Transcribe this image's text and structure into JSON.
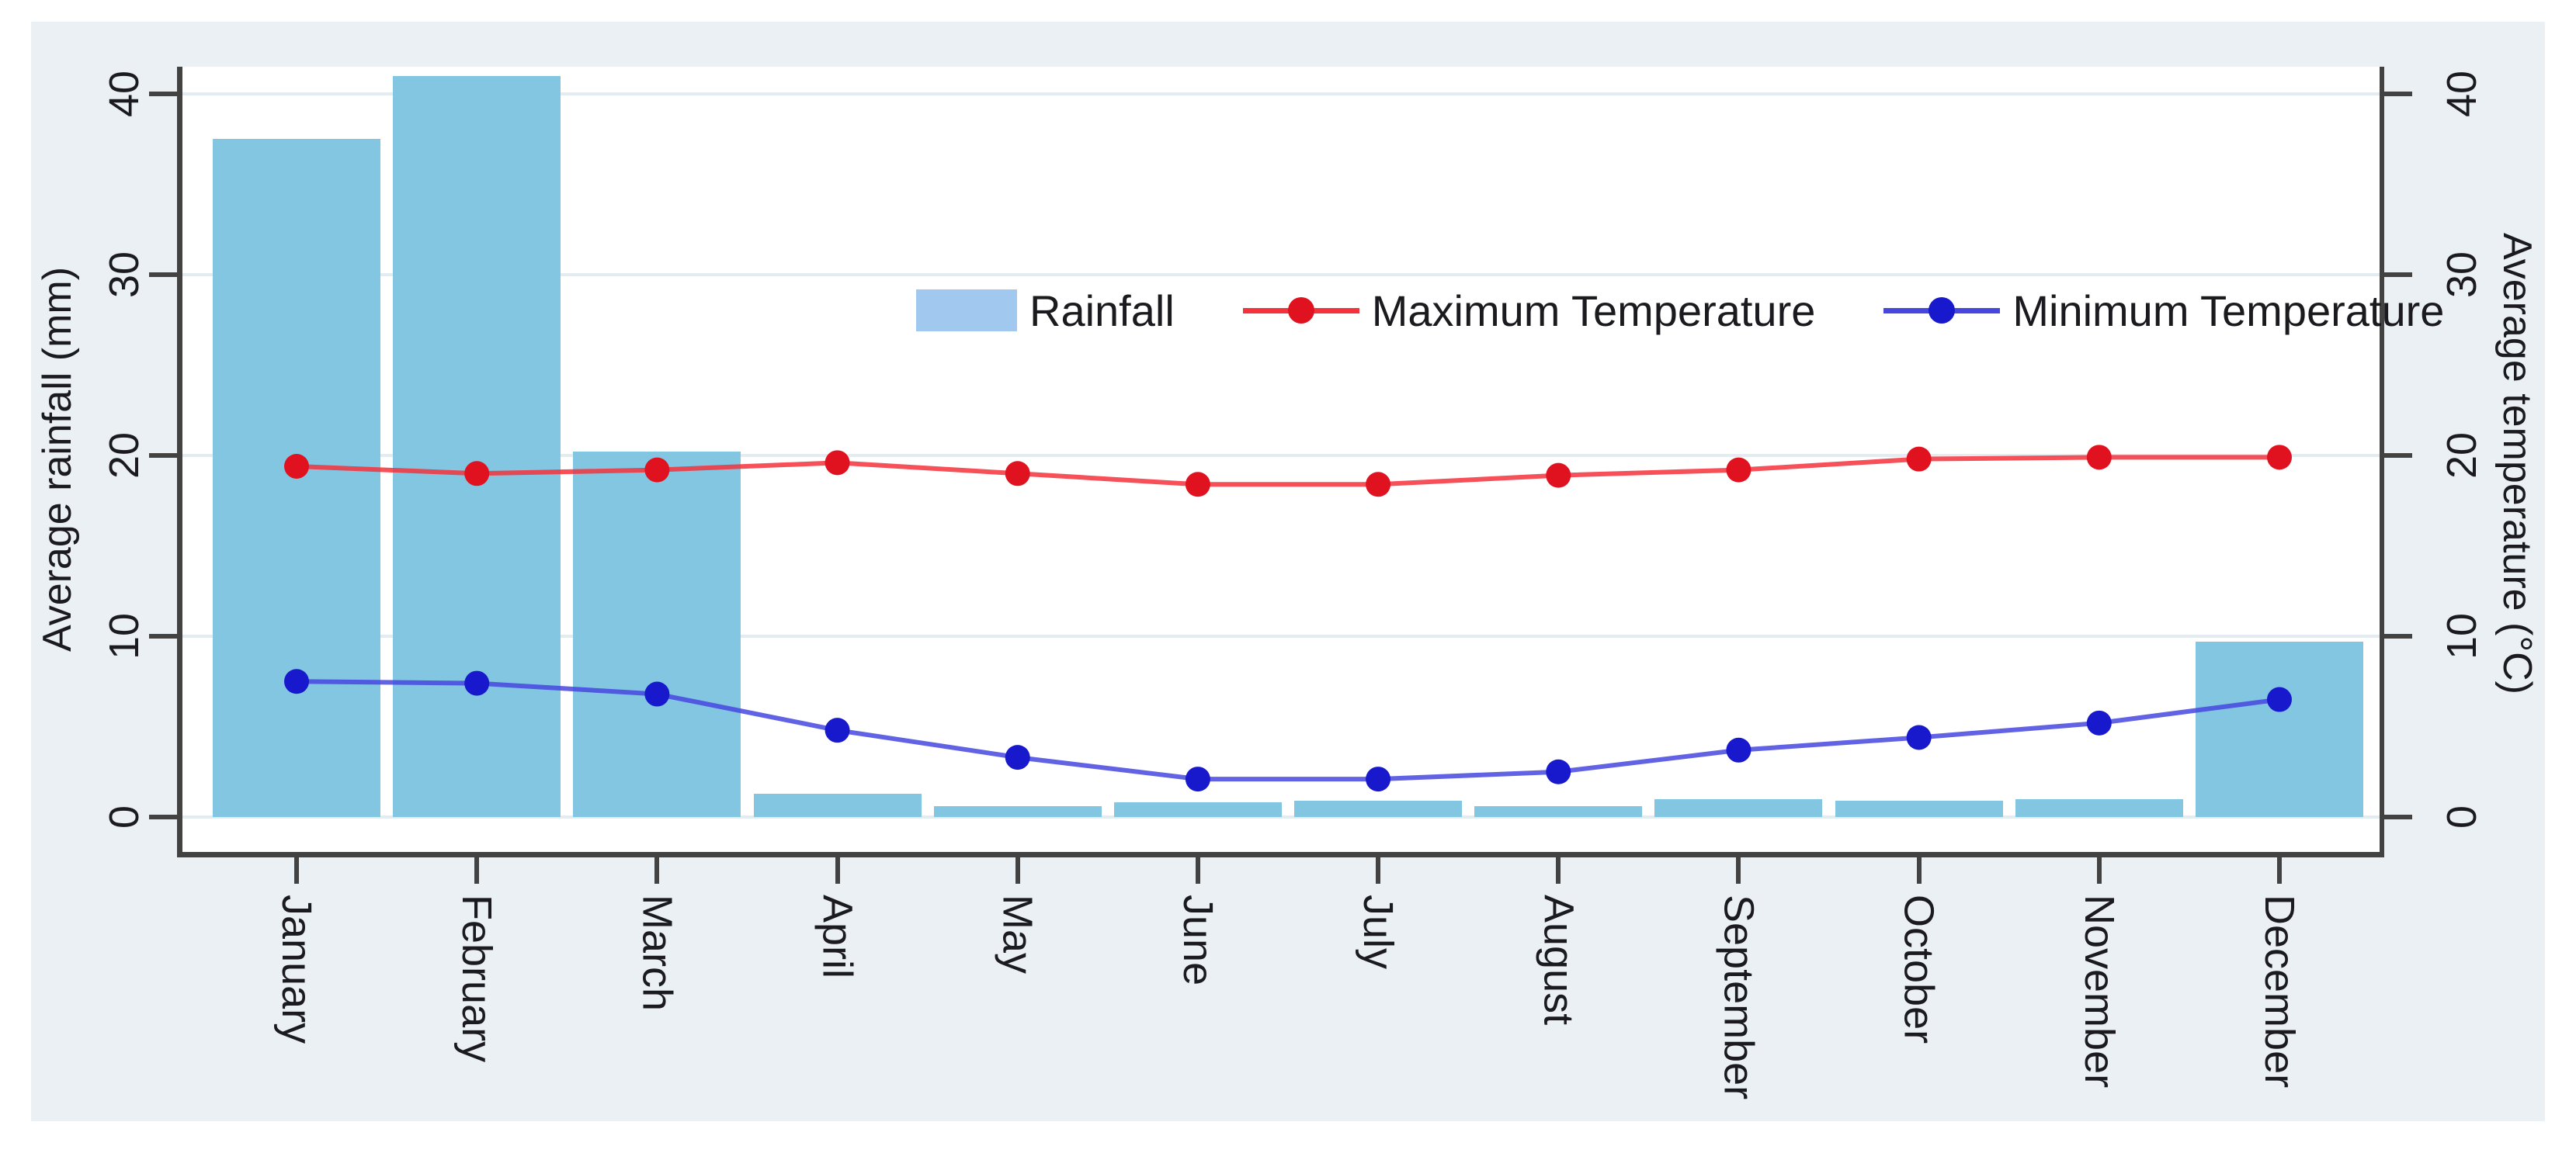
{
  "chart_data": {
    "type": "bar+line",
    "categories": [
      "January",
      "February",
      "March",
      "April",
      "May",
      "June",
      "July",
      "August",
      "September",
      "October",
      "November",
      "December"
    ],
    "series": [
      {
        "name": "Rainfall",
        "type": "bar",
        "axis": "left",
        "values": [
          37.5,
          41.0,
          20.2,
          1.3,
          0.6,
          0.8,
          0.9,
          0.6,
          1.0,
          0.9,
          1.0,
          9.7
        ]
      },
      {
        "name": "Maximum Temperature",
        "type": "line",
        "axis": "right",
        "values": [
          19.4,
          19.0,
          19.2,
          19.6,
          19.0,
          18.4,
          18.4,
          18.9,
          19.2,
          19.8,
          19.9,
          19.9
        ]
      },
      {
        "name": "Minimum Temperature",
        "type": "line",
        "axis": "right",
        "values": [
          7.5,
          7.4,
          6.8,
          4.8,
          3.3,
          2.1,
          2.1,
          2.5,
          3.7,
          4.4,
          5.2,
          6.5
        ]
      }
    ],
    "left_axis": {
      "title": "Average rainfall (mm)",
      "ticks": [
        0,
        10,
        20,
        30,
        40
      ],
      "range": [
        0,
        40
      ]
    },
    "right_axis": {
      "title": "Average temperature (°C)",
      "ticks": [
        0,
        10,
        20,
        30,
        40
      ],
      "range": [
        0,
        40
      ]
    },
    "grid": true,
    "legend_position": "top-inside"
  },
  "colors": {
    "background": "#eaf0f3",
    "plot": "#ffffff",
    "grid": "#e3ecf1",
    "axis": "#424242",
    "bar": "#82c6e2",
    "legend_swatch": "#a1c9f0",
    "max_line": "#f5323c",
    "max_marker": "#e1121f",
    "min_line": "#4646e0",
    "min_marker": "#1818cc",
    "text": "#1b1b1f"
  }
}
